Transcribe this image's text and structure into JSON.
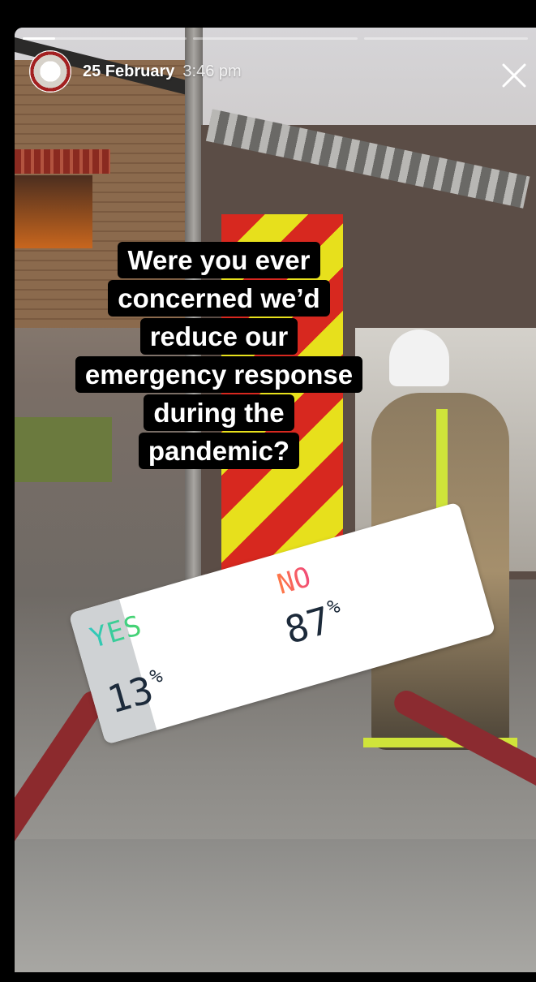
{
  "story": {
    "date": "25 February",
    "time": "3:46 pm",
    "progress": [
      1,
      0,
      0
    ],
    "progress_fill_fraction": 0.2,
    "account_avatar_icon": "fire-service-crest-icon",
    "close_icon": "close-icon"
  },
  "question": {
    "lines": [
      "Were you ever",
      "concerned we’d",
      "reduce our",
      "emergency response",
      "during the",
      "pandemic?"
    ]
  },
  "poll": {
    "yes_label": "YES",
    "no_label": "NO",
    "yes_value": "13",
    "no_value": "87",
    "percent_symbol": "%",
    "yes_fraction": 0.13
  }
}
